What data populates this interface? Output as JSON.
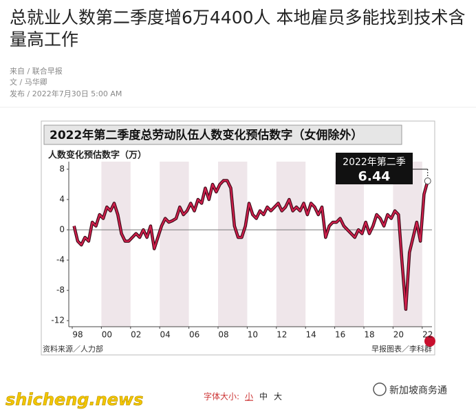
{
  "article": {
    "title": "总就业人数第二季度增6万4400人 本地雇员多能找到技术含量高工作",
    "source": "来自 / 联合早报",
    "author": "文 / 马华卿",
    "published": "发布 / 2022年7月30日 5:00 AM"
  },
  "chart_data": {
    "type": "line",
    "title": "2022年第二季度总劳动队伍人数变化预估数字（女佣除外）",
    "y_label": "人数变化预估数字（万）",
    "source_note": "资料来源／人力部",
    "credit": "早报图表／李科群",
    "annotation": "2022年第二季",
    "categories": [
      "98",
      null,
      null,
      null,
      null,
      null,
      null,
      null,
      "00",
      null,
      null,
      null,
      null,
      null,
      null,
      null,
      "02",
      null,
      null,
      null,
      null,
      null,
      null,
      null,
      "04",
      null,
      null,
      null,
      null,
      null,
      null,
      null,
      "06",
      null,
      null,
      null,
      null,
      null,
      null,
      null,
      "08",
      null,
      null,
      null,
      null,
      null,
      null,
      null,
      "10",
      null,
      null,
      null,
      null,
      null,
      null,
      null,
      "12",
      null,
      null,
      null,
      null,
      null,
      null,
      null,
      "14",
      null,
      null,
      null,
      null,
      null,
      null,
      null,
      "16",
      null,
      null,
      null,
      null,
      null,
      null,
      null,
      "18",
      null,
      null,
      null,
      null,
      null,
      null,
      null,
      "20",
      null,
      null,
      null,
      null,
      null,
      null,
      null,
      "22",
      null
    ],
    "series": [
      {
        "name": "总劳动队伍人数变化",
        "color": "#d21f4c",
        "values": [
          0.5,
          -1.5,
          -2.0,
          -1.0,
          -1.5,
          1.0,
          0.5,
          2.0,
          1.5,
          3.0,
          2.5,
          3.5,
          2.0,
          -0.5,
          -1.5,
          -1.5,
          -1.0,
          -0.5,
          -1.0,
          0.0,
          -1.0,
          0.5,
          -2.5,
          -1.0,
          0.5,
          1.5,
          1.0,
          1.2,
          1.5,
          3.0,
          2.0,
          2.5,
          3.5,
          2.5,
          4.0,
          3.5,
          5.5,
          4.0,
          6.0,
          5.0,
          6.0,
          6.5,
          6.5,
          5.5,
          0.5,
          -1.0,
          -1.0,
          0.5,
          3.5,
          2.0,
          1.5,
          2.5,
          2.0,
          3.0,
          2.5,
          3.0,
          3.5,
          2.5,
          3.0,
          4.0,
          2.5,
          3.0,
          2.5,
          3.5,
          2.0,
          3.5,
          3.0,
          2.0,
          3.0,
          -1.0,
          0.5,
          1.0,
          1.0,
          1.5,
          0.5,
          0.0,
          -0.5,
          -1.0,
          0.0,
          -0.5,
          1.0,
          -0.5,
          0.5,
          2.0,
          1.5,
          0.5,
          2.0,
          1.5,
          2.5,
          2.0,
          -4.5,
          -10.5,
          -3.0,
          -1.0,
          1.0,
          -1.5,
          4.7,
          6.44
        ]
      }
    ],
    "ylim": [
      -12.8,
      9
    ],
    "yticks": [
      8,
      4,
      0,
      -4,
      -8,
      -12
    ],
    "grid": false
  },
  "footer": {
    "font_size_label": "字体大小:",
    "sizes": [
      "小",
      "中",
      "大"
    ],
    "watermark": "shicheng.news",
    "account": "新加坡商务通"
  }
}
